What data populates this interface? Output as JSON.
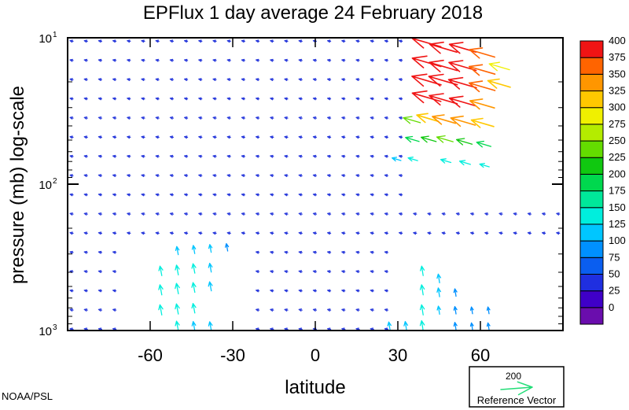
{
  "chart_data": {
    "type": "vector-field",
    "title": "EPFlux  1 day average  24 February 2018",
    "xlabel": "latitude",
    "ylabel": "pressure (mb)  log-scale",
    "xlim": [
      -90,
      90
    ],
    "ylim": [
      1000,
      10
    ],
    "yscale": "log",
    "x_ticks": [
      -60,
      -30,
      0,
      30,
      60
    ],
    "x_tick_labels": [
      "-60",
      "-30",
      "0",
      "30",
      "60"
    ],
    "y_ticks": [
      10,
      100,
      1000
    ],
    "y_tick_labels": [
      {
        "base": "10",
        "exp": "1"
      },
      {
        "base": "10",
        "exp": "2"
      },
      {
        "base": "10",
        "exp": "3"
      }
    ],
    "colorbar": {
      "levels": [
        0,
        25,
        50,
        75,
        100,
        125,
        150,
        175,
        200,
        225,
        250,
        275,
        300,
        325,
        350,
        375,
        400
      ],
      "labels": [
        "0",
        "25",
        "50",
        "75",
        "100",
        "125",
        "150",
        "175",
        "200",
        "225",
        "250",
        "275",
        "300",
        "325",
        "350",
        "375",
        "400"
      ],
      "colors": [
        "#6a0dad",
        "#3f00c8",
        "#1f2fe0",
        "#0a5ef0",
        "#0090ff",
        "#00c6ff",
        "#00eedd",
        "#00e89a",
        "#00d84e",
        "#10c810",
        "#64dc00",
        "#b4ec00",
        "#f0f000",
        "#ffc800",
        "#ff9600",
        "#ff6400",
        "#f01414"
      ]
    },
    "reference_vector": {
      "value": 200,
      "label": "Reference Vector",
      "value_label": "200",
      "color": "#22dd77"
    },
    "arrows": [
      {
        "lat": 42,
        "p": 11,
        "mag": 420
      },
      {
        "lat": 48,
        "p": 12,
        "mag": 400
      },
      {
        "lat": 55,
        "p": 12,
        "mag": 390
      },
      {
        "lat": 62,
        "p": 13,
        "mag": 370
      },
      {
        "lat": 42,
        "p": 15,
        "mag": 420
      },
      {
        "lat": 48,
        "p": 16,
        "mag": 410
      },
      {
        "lat": 55,
        "p": 16,
        "mag": 400
      },
      {
        "lat": 62,
        "p": 17,
        "mag": 380
      },
      {
        "lat": 68,
        "p": 16,
        "mag": 300
      },
      {
        "lat": 42,
        "p": 20,
        "mag": 430
      },
      {
        "lat": 48,
        "p": 20,
        "mag": 420
      },
      {
        "lat": 55,
        "p": 21,
        "mag": 410
      },
      {
        "lat": 62,
        "p": 22,
        "mag": 380
      },
      {
        "lat": 68,
        "p": 21,
        "mag": 330
      },
      {
        "lat": 42,
        "p": 26,
        "mag": 420
      },
      {
        "lat": 48,
        "p": 27,
        "mag": 410
      },
      {
        "lat": 55,
        "p": 28,
        "mag": 390
      },
      {
        "lat": 62,
        "p": 29,
        "mag": 360
      },
      {
        "lat": 36,
        "p": 37,
        "mag": 250
      },
      {
        "lat": 42,
        "p": 36,
        "mag": 320
      },
      {
        "lat": 48,
        "p": 37,
        "mag": 340
      },
      {
        "lat": 55,
        "p": 38,
        "mag": 360
      },
      {
        "lat": 62,
        "p": 39,
        "mag": 330
      },
      {
        "lat": 36,
        "p": 50,
        "mag": 200
      },
      {
        "lat": 42,
        "p": 50,
        "mag": 220
      },
      {
        "lat": 48,
        "p": 50,
        "mag": 240
      },
      {
        "lat": 55,
        "p": 52,
        "mag": 230
      },
      {
        "lat": 62,
        "p": 54,
        "mag": 210
      },
      {
        "lat": 30,
        "p": 68,
        "mag": 130
      },
      {
        "lat": 36,
        "p": 68,
        "mag": 140
      },
      {
        "lat": 48,
        "p": 70,
        "mag": 150
      },
      {
        "lat": 55,
        "p": 72,
        "mag": 160
      },
      {
        "lat": 62,
        "p": 75,
        "mag": 140
      },
      {
        "lat": -50,
        "p": 290,
        "mag": 120
      },
      {
        "lat": -44,
        "p": 285,
        "mag": 120
      },
      {
        "lat": -38,
        "p": 280,
        "mag": 115
      },
      {
        "lat": -32,
        "p": 275,
        "mag": 110
      },
      {
        "lat": -56,
        "p": 400,
        "mag": 140
      },
      {
        "lat": -50,
        "p": 395,
        "mag": 145
      },
      {
        "lat": -44,
        "p": 385,
        "mag": 140
      },
      {
        "lat": -38,
        "p": 380,
        "mag": 130
      },
      {
        "lat": -56,
        "p": 540,
        "mag": 150
      },
      {
        "lat": -50,
        "p": 530,
        "mag": 155
      },
      {
        "lat": -44,
        "p": 520,
        "mag": 145
      },
      {
        "lat": -38,
        "p": 510,
        "mag": 135
      },
      {
        "lat": -56,
        "p": 740,
        "mag": 150
      },
      {
        "lat": -50,
        "p": 730,
        "mag": 150
      },
      {
        "lat": -44,
        "p": 720,
        "mag": 140
      },
      {
        "lat": -50,
        "p": 950,
        "mag": 140
      },
      {
        "lat": -44,
        "p": 950,
        "mag": 130
      },
      {
        "lat": -38,
        "p": 950,
        "mag": 125
      },
      {
        "lat": 39,
        "p": 400,
        "mag": 140
      },
      {
        "lat": 39,
        "p": 540,
        "mag": 150
      },
      {
        "lat": 39,
        "p": 740,
        "mag": 150
      },
      {
        "lat": 39,
        "p": 950,
        "mag": 150
      },
      {
        "lat": 45,
        "p": 450,
        "mag": 130
      },
      {
        "lat": 45,
        "p": 560,
        "mag": 130
      },
      {
        "lat": 45,
        "p": 740,
        "mag": 120
      },
      {
        "lat": 51,
        "p": 560,
        "mag": 110
      },
      {
        "lat": 51,
        "p": 740,
        "mag": 110
      },
      {
        "lat": 51,
        "p": 950,
        "mag": 110
      },
      {
        "lat": 57,
        "p": 740,
        "mag": 100
      },
      {
        "lat": 57,
        "p": 950,
        "mag": 100
      },
      {
        "lat": 63,
        "p": 740,
        "mag": 100
      },
      {
        "lat": 63,
        "p": 950,
        "mag": 100
      },
      {
        "lat": 33,
        "p": 950,
        "mag": 130
      },
      {
        "lat": 27,
        "p": 950,
        "mag": 120
      }
    ]
  },
  "footer": {
    "credit": "NOAA/PSL"
  }
}
